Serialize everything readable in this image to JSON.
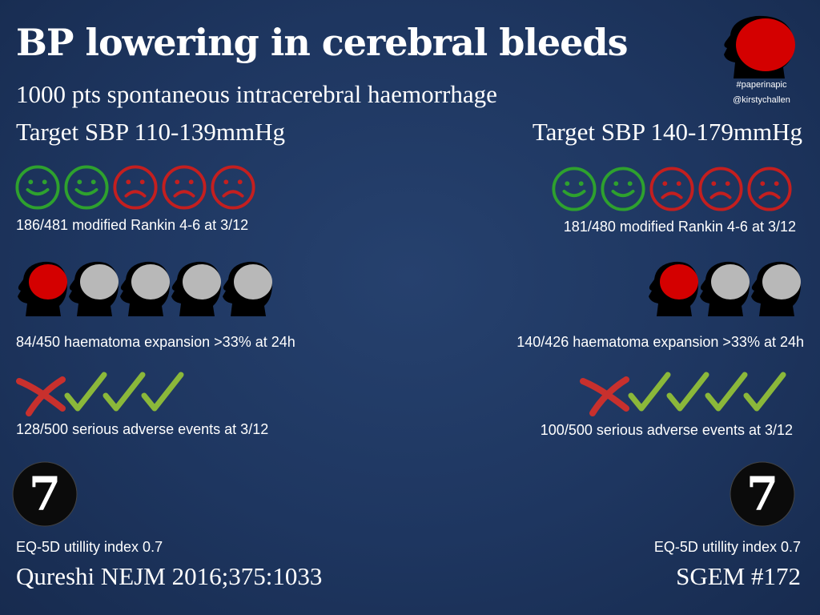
{
  "header": {
    "title": "BP lowering in cerebral bleeds",
    "subtitle": "1000 pts spontaneous intracerebral haemorrhage",
    "hashtag": "#paperinapic",
    "author": "@kirstychallen"
  },
  "colors": {
    "background": "#1e3660",
    "smile": "#2ea12e",
    "frown": "#c41f1f",
    "brain_red": "#d40000",
    "brain_grey": "#b8b8b8",
    "cross": "#c8302d",
    "tick": "#8bb83a"
  },
  "left_arm": {
    "target": "Target SBP 110-139mmHg",
    "rankin": {
      "text": "186/481 modified Rankin 4-6 at 3/12",
      "happy": 2,
      "sad": 3
    },
    "haematoma": {
      "text": "84/450 haematoma expansion >33% at 24h",
      "red": 1,
      "grey": 4
    },
    "adverse": {
      "text": "128/500 serious adverse events at 3/12",
      "cross": 1,
      "tick": 3
    },
    "eq5d": {
      "badge": "7",
      "text": "EQ-5D utillity index 0.7"
    }
  },
  "right_arm": {
    "target": "Target SBP 140-179mmHg",
    "rankin": {
      "text": "181/480 modified Rankin 4-6 at 3/12",
      "happy": 2,
      "sad": 3
    },
    "haematoma": {
      "text": "140/426 haematoma expansion >33% at 24h",
      "red": 1,
      "grey": 2
    },
    "adverse": {
      "text": "100/500 serious adverse events at 3/12",
      "cross": 1,
      "tick": 4
    },
    "eq5d": {
      "badge": "7",
      "text": "EQ-5D utillity index 0.7"
    }
  },
  "footer": {
    "left_citation": "Qureshi NEJM 2016;375:1033",
    "right_citation": "SGEM #172"
  }
}
